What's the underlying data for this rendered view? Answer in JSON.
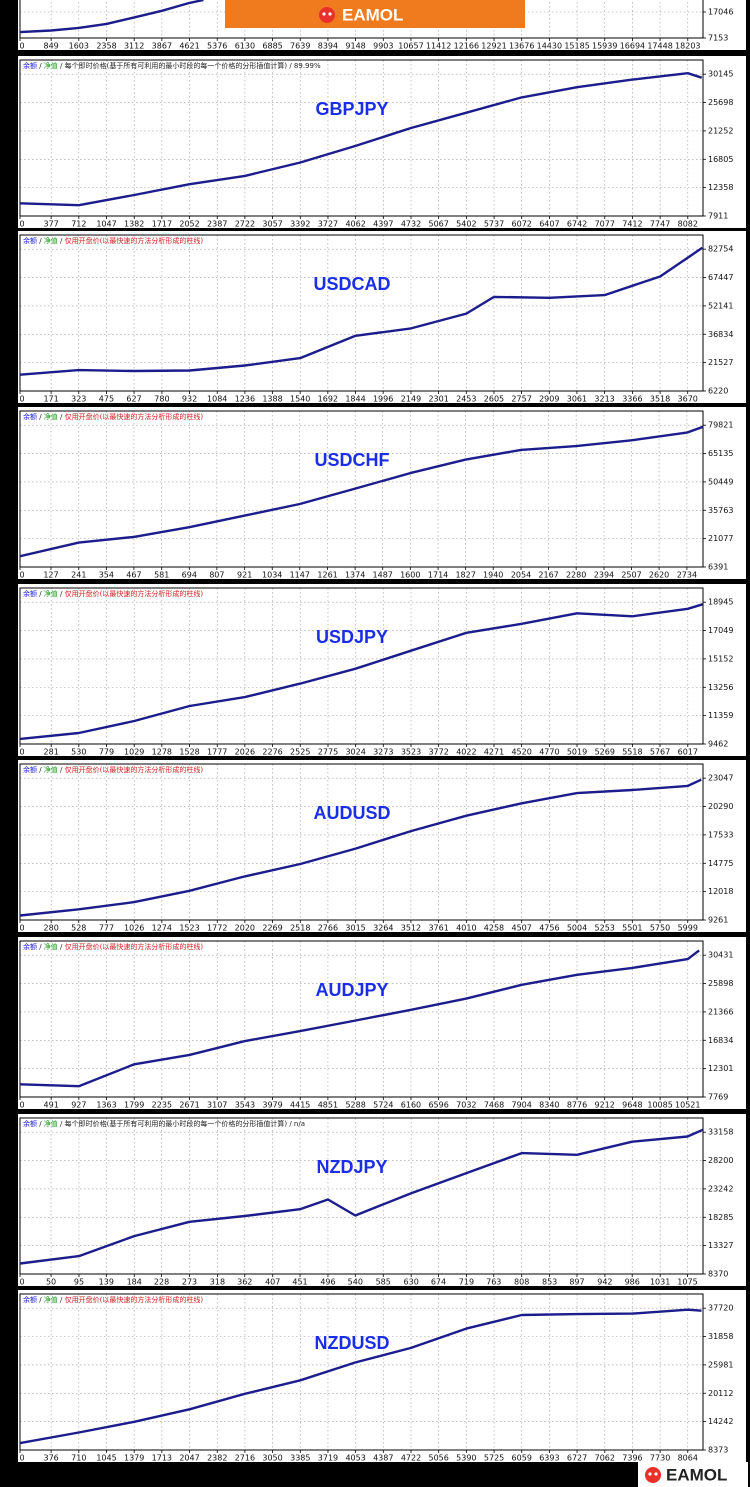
{
  "separator": " / ",
  "watermarks": [
    "EAMOL",
    "EAMOL"
  ],
  "chart_data": [
    {
      "type": "line",
      "color": "#1c1c8c",
      "grid": true,
      "x": [
        0,
        849,
        1603,
        2358,
        3112,
        3867,
        4621,
        5000
      ],
      "values": [
        9400,
        10000,
        11000,
        12500,
        15000,
        17500,
        20500,
        21600
      ],
      "xlim": [
        0,
        18618
      ],
      "ylim": [
        7153,
        66511
      ],
      "xticks": [
        0,
        849,
        1603,
        2358,
        3112,
        3867,
        4621,
        5376,
        6130,
        6885,
        7639,
        8394,
        9148,
        9903,
        10657,
        11412,
        12166,
        12921,
        13676,
        14430,
        15185,
        15939,
        16694,
        17448,
        18203
      ],
      "yticks": [
        7153,
        17046
      ]
    },
    {
      "type": "line",
      "title": "GBPJPY",
      "color": "#1c1c8c",
      "grid": true,
      "header": [
        "余额",
        "净值",
        "每个即时价格(基于所有可利用的最小时段的每一个价格的分形插值计算)",
        "89.99%"
      ],
      "header_colors": [
        "#1a1ad0",
        "#1a9a1a",
        "#222222",
        "#222222"
      ],
      "x": [
        0,
        712,
        1382,
        2052,
        2722,
        3392,
        4062,
        4732,
        5402,
        6072,
        6742,
        7412,
        8082,
        8250
      ],
      "values": [
        9900,
        9600,
        11200,
        12900,
        14200,
        16300,
        18900,
        21700,
        24100,
        26500,
        28100,
        29300,
        30300,
        29600
      ],
      "xlim": [
        0,
        8266
      ],
      "ylim": [
        7911,
        32368
      ],
      "xticks": [
        0,
        377,
        712,
        1047,
        1382,
        1717,
        2052,
        2387,
        2722,
        3057,
        3392,
        3727,
        4062,
        4397,
        4732,
        5067,
        5402,
        5737,
        6072,
        6407,
        6742,
        7077,
        7412,
        7747,
        8082
      ],
      "yticks": [
        7911,
        12358,
        16805,
        21252,
        25698,
        30145
      ]
    },
    {
      "type": "line",
      "title": "USDCAD",
      "color": "#1c1c8c",
      "grid": true,
      "header": [
        "余额",
        "净值",
        "仅用开盘价(以最快速的方法分析形成的柱线)"
      ],
      "header_colors": [
        "#1a1ad0",
        "#1a9a1a",
        "#d02020"
      ],
      "x": [
        0,
        323,
        627,
        932,
        1236,
        1540,
        1844,
        2149,
        2453,
        2605,
        2909,
        3213,
        3518,
        3750
      ],
      "values": [
        15000,
        17500,
        17000,
        17300,
        20000,
        24000,
        36000,
        40000,
        48000,
        57000,
        56500,
        58000,
        68000,
        83500
      ],
      "xlim": [
        0,
        3754
      ],
      "ylim": [
        6220,
        90408
      ],
      "xticks": [
        0,
        171,
        323,
        475,
        627,
        780,
        932,
        1084,
        1236,
        1388,
        1540,
        1692,
        1844,
        1996,
        2149,
        2301,
        2453,
        2605,
        2757,
        2909,
        3061,
        3213,
        3366,
        3518,
        3670
      ],
      "yticks": [
        6220,
        21527,
        36834,
        52141,
        67447,
        82754
      ]
    },
    {
      "type": "line",
      "title": "USDCHF",
      "color": "#1c1c8c",
      "grid": true,
      "header": [
        "余额",
        "净值",
        "仅用开盘价(以最快速的方法分析形成的柱线)"
      ],
      "header_colors": [
        "#1a1ad0",
        "#1a9a1a",
        "#d02020"
      ],
      "x": [
        0,
        241,
        467,
        694,
        921,
        1147,
        1374,
        1600,
        1827,
        2054,
        2280,
        2507,
        2734,
        2800
      ],
      "values": [
        12000,
        19000,
        22000,
        27000,
        33000,
        39000,
        47000,
        55000,
        62000,
        67000,
        69000,
        72000,
        76000,
        79000
      ],
      "xlim": [
        0,
        2800
      ],
      "ylim": [
        6391,
        87164
      ],
      "xticks": [
        0,
        127,
        241,
        354,
        467,
        581,
        694,
        807,
        921,
        1034,
        1147,
        1261,
        1374,
        1487,
        1600,
        1714,
        1827,
        1940,
        2054,
        2167,
        2280,
        2394,
        2507,
        2620,
        2734
      ],
      "yticks": [
        6391,
        21077,
        35763,
        50449,
        65135,
        79821
      ]
    },
    {
      "type": "line",
      "title": "USDJPY",
      "color": "#1c1c8c",
      "grid": true,
      "header": [
        "余额",
        "净值",
        "仅用开盘价(以最快速的方法分析形成的柱线)"
      ],
      "header_colors": [
        "#1a1ad0",
        "#1a9a1a",
        "#d02020"
      ],
      "x": [
        0,
        530,
        1029,
        1528,
        2026,
        2525,
        3024,
        3523,
        4022,
        4520,
        5019,
        5518,
        6017,
        6150
      ],
      "values": [
        9800,
        10200,
        11000,
        12000,
        12600,
        13500,
        14500,
        15700,
        16900,
        17500,
        18200,
        18000,
        18500,
        18800
      ],
      "xlim": [
        0,
        6154
      ],
      "ylim": [
        9462,
        19893
      ],
      "xticks": [
        0,
        281,
        530,
        779,
        1029,
        1278,
        1528,
        1777,
        2026,
        2276,
        2525,
        2775,
        3024,
        3273,
        3523,
        3772,
        4022,
        4271,
        4520,
        4770,
        5019,
        5269,
        5518,
        5767,
        6017
      ],
      "yticks": [
        9462,
        11359,
        13256,
        15152,
        17049,
        18945
      ]
    },
    {
      "type": "line",
      "title": "AUDUSD",
      "color": "#1c1c8c",
      "grid": true,
      "header": [
        "余额",
        "净值",
        "仅用开盘价(以最快速的方法分析形成的柱线)"
      ],
      "header_colors": [
        "#1a1ad0",
        "#1a9a1a",
        "#d02020"
      ],
      "x": [
        0,
        528,
        1026,
        1523,
        2020,
        2518,
        3015,
        3512,
        4010,
        4507,
        5004,
        5501,
        5999,
        6120
      ],
      "values": [
        9700,
        10300,
        11000,
        12100,
        13500,
        14700,
        16200,
        17900,
        19400,
        20600,
        21600,
        21900,
        22300,
        22900
      ],
      "xlim": [
        0,
        6136
      ],
      "ylim": [
        9261,
        24425
      ],
      "xticks": [
        0,
        280,
        528,
        777,
        1026,
        1274,
        1523,
        1772,
        2020,
        2269,
        2518,
        2766,
        3015,
        3264,
        3512,
        3761,
        4010,
        4258,
        4507,
        4756,
        5004,
        5253,
        5501,
        5750,
        5999
      ],
      "yticks": [
        9261,
        12018,
        14775,
        17533,
        20290,
        23047
      ]
    },
    {
      "type": "line",
      "title": "AUDJPY",
      "color": "#1c1c8c",
      "grid": true,
      "header": [
        "余额",
        "净值",
        "仅用开盘价(以最快速的方法分析形成的柱线)"
      ],
      "header_colors": [
        "#1a1ad0",
        "#1a9a1a",
        "#d02020"
      ],
      "x": [
        0,
        927,
        1799,
        2671,
        3543,
        4415,
        5288,
        6160,
        7032,
        7904,
        8776,
        9648,
        10521,
        10700
      ],
      "values": [
        9800,
        9500,
        13000,
        14500,
        16700,
        18300,
        20000,
        21700,
        23500,
        25700,
        27300,
        28400,
        29800,
        31200
      ],
      "xlim": [
        0,
        10761
      ],
      "ylim": [
        7769,
        32697
      ],
      "xticks": [
        0,
        491,
        927,
        1363,
        1799,
        2235,
        2671,
        3107,
        3543,
        3979,
        4415,
        4851,
        5288,
        5724,
        6160,
        6596,
        7032,
        7468,
        7904,
        8340,
        8776,
        9212,
        9648,
        10085,
        10521
      ],
      "yticks": [
        7769,
        12301,
        16834,
        21366,
        25898,
        30431
      ]
    },
    {
      "type": "line",
      "title": "NZDJPY",
      "color": "#1c1c8c",
      "grid": true,
      "header": [
        "余额",
        "净值",
        "每个即时价格(基于所有可利用的最小时段的每一个价格的分形插值计算)",
        "n/a"
      ],
      "header_colors": [
        "#1a1ad0",
        "#1a9a1a",
        "#222222",
        "#222222"
      ],
      "x": [
        0,
        95,
        184,
        273,
        362,
        451,
        496,
        540,
        630,
        719,
        808,
        897,
        986,
        1075,
        1100
      ],
      "values": [
        10200,
        11500,
        15000,
        17500,
        18500,
        19700,
        21400,
        18600,
        22500,
        26000,
        29500,
        29200,
        31500,
        32400,
        33600
      ],
      "xlim": [
        0,
        1100
      ],
      "ylim": [
        8370,
        35637
      ],
      "xticks": [
        0,
        50,
        95,
        139,
        184,
        228,
        273,
        318,
        362,
        407,
        451,
        496,
        540,
        585,
        630,
        674,
        719,
        763,
        808,
        853,
        897,
        942,
        986,
        1031,
        1075
      ],
      "yticks": [
        8370,
        13327,
        18285,
        23242,
        28200,
        33158
      ]
    },
    {
      "type": "line",
      "title": "NZDUSD",
      "color": "#1c1c8c",
      "grid": true,
      "header": [
        "余额",
        "净值",
        "仅用开盘价(以最快速的方法分析形成的柱线)"
      ],
      "header_colors": [
        "#1a1ad0",
        "#1a9a1a",
        "#d02020"
      ],
      "x": [
        0,
        710,
        1379,
        2047,
        2716,
        3385,
        4053,
        4722,
        5390,
        6059,
        6727,
        7396,
        8064,
        8230
      ],
      "values": [
        9800,
        12000,
        14200,
        16800,
        20000,
        22800,
        26500,
        29500,
        33500,
        36300,
        36500,
        36600,
        37400,
        37200
      ],
      "xlim": [
        0,
        8248
      ],
      "ylim": [
        8373,
        40655
      ],
      "xticks": [
        0,
        376,
        710,
        1045,
        1379,
        1713,
        2047,
        2382,
        2716,
        3050,
        3385,
        3719,
        4053,
        4387,
        4722,
        5056,
        5390,
        5725,
        6059,
        6393,
        6727,
        7062,
        7396,
        7730,
        8064
      ],
      "yticks": [
        8373,
        14242,
        20112,
        25981,
        31858,
        37720
      ]
    }
  ]
}
